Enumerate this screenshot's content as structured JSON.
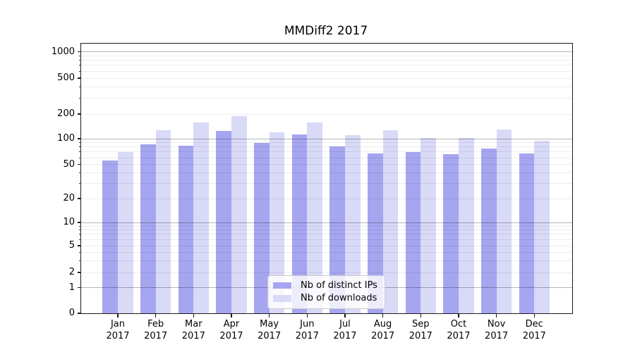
{
  "title": "MMDiff2 2017",
  "chart_data": {
    "type": "bar",
    "title": "MMDiff2 2017",
    "categories": [
      "Jan",
      "Feb",
      "Mar",
      "Apr",
      "May",
      "Jun",
      "Jul",
      "Aug",
      "Sep",
      "Oct",
      "Nov",
      "Dec"
    ],
    "category_year": "2017",
    "series": [
      {
        "name": "Nb of distinct IPs",
        "color": "#a5a5f0",
        "values": [
          56,
          86,
          83,
          125,
          90,
          113,
          82,
          67,
          70,
          66,
          77,
          67
        ]
      },
      {
        "name": "Nb of downloads",
        "color": "#d9d9f8",
        "values": [
          70,
          128,
          157,
          187,
          119,
          157,
          110,
          127,
          101,
          103,
          130,
          94
        ]
      }
    ],
    "y_axis": {
      "scale": "symlog",
      "tick_values": [
        0,
        1,
        2,
        5,
        10,
        20,
        50,
        100,
        200,
        500,
        1000
      ],
      "tick_labels": [
        "0",
        "1",
        "2",
        "5",
        "10",
        "20",
        "50",
        "100",
        "200",
        "500",
        "1000"
      ],
      "range_top": 1250,
      "minor_gridlines": true
    },
    "xlabel": "",
    "ylabel": "",
    "grid": "horizontal major+minor, drawn over bars",
    "legend": {
      "position": "lower center",
      "entries": [
        "Nb of distinct IPs",
        "Nb of downloads"
      ]
    }
  },
  "colors": {
    "bar_distinct_ips": "#a5a5f0",
    "bar_downloads": "#d9d9f8",
    "grid_major": "#b5b5b5",
    "grid_minor": "#ececec",
    "spine": "#1a1a1a",
    "legend_border": "#cccccc",
    "background": "#ffffff",
    "text": "#000000"
  }
}
